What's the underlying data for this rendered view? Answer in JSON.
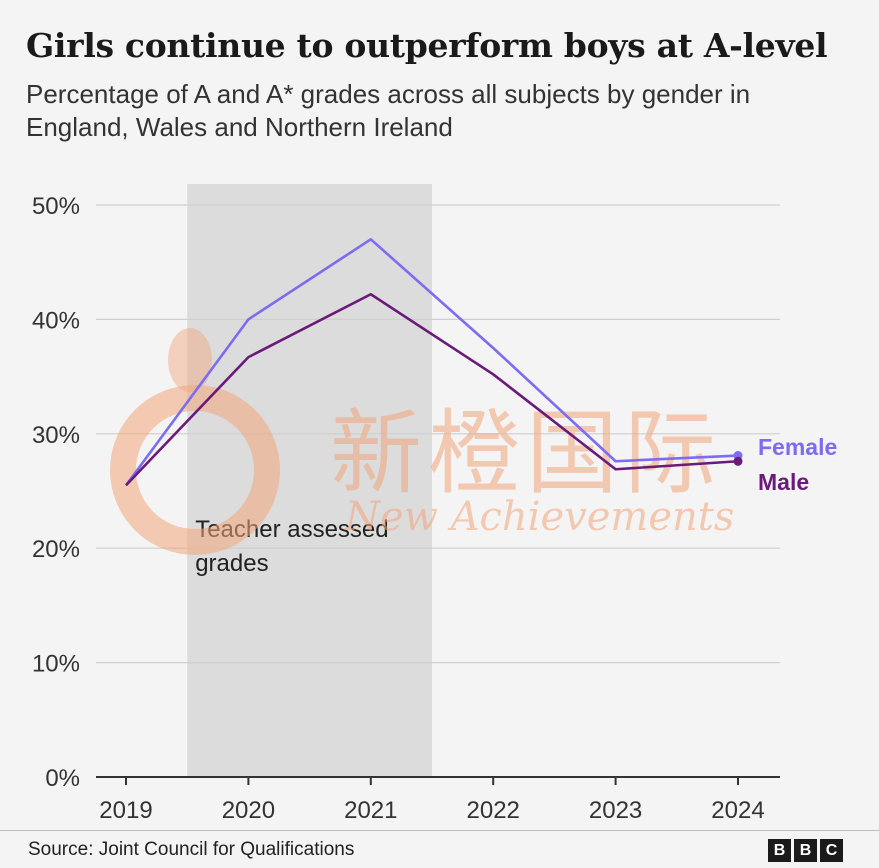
{
  "title": "Girls continue to outperform boys at A-level",
  "subtitle": "Percentage of A and A* grades across all subjects by gender in England, Wales and Northern Ireland",
  "source": "Source: Joint Council for Qualifications",
  "logo": [
    "B",
    "B",
    "C"
  ],
  "watermark": {
    "cn": "新橙国际",
    "en": "New Achievements"
  },
  "chart_data": {
    "type": "line",
    "x": [
      "2019",
      "2020",
      "2021",
      "2022",
      "2023",
      "2024"
    ],
    "ylim": [
      0,
      50
    ],
    "yticks": [
      0,
      10,
      20,
      30,
      40,
      50
    ],
    "ytick_labels": [
      "0%",
      "10%",
      "20%",
      "30%",
      "40%",
      "50%"
    ],
    "grid": true,
    "legend": "direct-labels-right",
    "series": [
      {
        "name": "Female",
        "values": [
          25.5,
          40.0,
          47.0,
          37.5,
          27.6,
          28.1
        ],
        "color": "#7b6cf0"
      },
      {
        "name": "Male",
        "values": [
          25.5,
          36.7,
          42.2,
          35.2,
          26.9,
          27.6
        ],
        "color": "#6a1a7a"
      }
    ],
    "annotation": {
      "label_lines": [
        "Teacher assessed",
        "grades"
      ],
      "x_range": [
        "2020",
        "2021"
      ]
    }
  }
}
